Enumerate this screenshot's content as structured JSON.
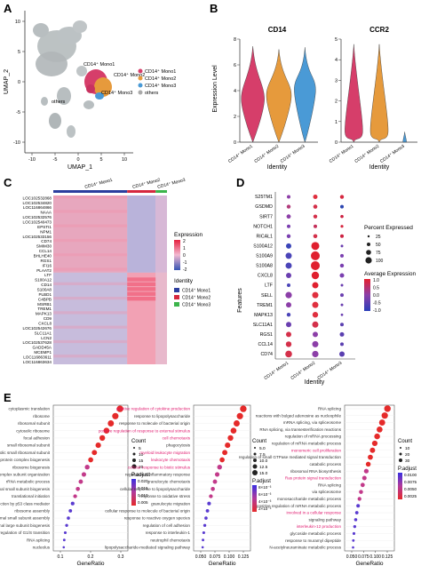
{
  "panels": {
    "A": {
      "label": "A",
      "xlabel": "UMAP_1",
      "ylabel": "UMAP_2",
      "xticks": [
        "-10",
        "-5",
        "0",
        "5",
        "10"
      ],
      "yticks": [
        "10",
        "5",
        "0",
        "-5",
        "-10"
      ],
      "annotations": [
        "CD14⁺ Mono1",
        "CD14⁺ Mono2",
        "CD14⁺ Mono3",
        "others"
      ],
      "legend": [
        {
          "name": "CD14⁺ Mono1",
          "color": "#d63e6a"
        },
        {
          "name": "CD14⁺ Mono2",
          "color": "#e69a3c"
        },
        {
          "name": "CD14⁺ Mono3",
          "color": "#4a9ad6"
        },
        {
          "name": "others",
          "color": "#aaaaaa"
        }
      ]
    },
    "B": {
      "label": "B",
      "genes": [
        {
          "title": "CD14",
          "yticks": [
            "8",
            "6",
            "4",
            "2",
            "0"
          ]
        },
        {
          "title": "CCR2",
          "yticks": [
            "5",
            "4",
            "3",
            "2",
            "1",
            "0"
          ]
        }
      ],
      "ylabel": "Expression Level",
      "xlabel": "Identity",
      "groups": [
        "CD14⁺ Mono1",
        "CD14⁺ Mono2",
        "CD14⁺ Mono3"
      ],
      "colors": [
        "#d63e6a",
        "#e69a3c",
        "#4a9ad6"
      ]
    },
    "C": {
      "label": "C",
      "top_labels": [
        "CD14⁺ Mono1",
        "CD14⁺ Mono2",
        "CD14⁺ Mono3"
      ],
      "genes": [
        "LOC102532868",
        "LOC102534820",
        "LOC116864866",
        "NAAA",
        "LOC102532576",
        "LOC102540473",
        "EPSTI1",
        "NPM1",
        "LOC102533156",
        "CD74",
        "SMIM30",
        "CCL14",
        "BHLHE40",
        "RGS1",
        "IFI16",
        "PLAAT2",
        "LTF",
        "S100A12",
        "CD14",
        "S100A8",
        "PLBD1",
        "C4BPB",
        "MSRB1",
        "TREM1",
        "MAPK13",
        "CD9",
        "CXCL8",
        "LOC102542676",
        "SLC11A1",
        "LCN2",
        "LOC102537628",
        "GADD45A",
        "MCEMP1",
        "LOC116863611",
        "LOC116863634"
      ],
      "legend_expression_title": "Expression",
      "expression_ticks": [
        "2",
        "1",
        "0",
        "-1",
        "-2"
      ],
      "legend_identity_title": "Identity",
      "identity": [
        {
          "name": "CD14⁺ Mono1",
          "color": "#2c3e9e"
        },
        {
          "name": "CD14⁺ Mono2",
          "color": "#d6283e"
        },
        {
          "name": "CD14⁺ Mono3",
          "color": "#3cb44b"
        }
      ]
    },
    "D": {
      "label": "D",
      "features": [
        "S25TM1",
        "GSDMD",
        "SIRT7",
        "NOTCH1",
        "RICAL1",
        "S100A12",
        "S100A9",
        "S100A8",
        "CXCL8",
        "LTF",
        "SELL",
        "TREM1",
        "MAPK13",
        "SLC11A1",
        "RGS1",
        "CCL14",
        "CD74"
      ],
      "ylabel": "Features",
      "xlabel": "Identity",
      "groups": [
        "CD14⁺ Mono1",
        "CD14⁺ Mono2",
        "CD14⁺ Mono3"
      ],
      "pct_title": "Percent Expressed",
      "pct_ticks": [
        "25",
        "50",
        "75",
        "100"
      ],
      "avg_title": "Average Expression",
      "avg_ticks": [
        "1.0",
        "0.5",
        "0.0",
        "-0.5",
        "-1.0"
      ]
    },
    "E": {
      "label": "E",
      "xlabel": "GeneRatio",
      "plots": [
        {
          "terms": [
            "cytoplasmic translation",
            "ribosome",
            "ribosomal subunit",
            "cytosolic ribosome",
            "focal adhesion",
            "small ribosomal subunit",
            "cytosolic small ribosomal subunit",
            "ribonucleoprotein complex biogenesis",
            "ribosome biogenesis",
            "ribonucleoprotein complex subunit organization",
            "rRNA metabolic process",
            "ribosomal small subunit biogenesis",
            "translational initiation",
            "signal transduction by p53 class mediator",
            "ribosome assembly",
            "ribosomal small subunit assembly",
            "ribosomal large subunit biogenesis",
            "negative regulation of G1/S transition",
            "RNA splicing",
            "nucleolus"
          ],
          "xticks": [
            "0.1",
            "0.2",
            "0.3"
          ],
          "count_title": "Count",
          "count_ticks": [
            "5",
            "10",
            "15",
            "20"
          ],
          "padj_title": "P.adjust",
          "padj_ticks": [
            "0.020",
            "0.015",
            "0.010",
            "0.005"
          ]
        },
        {
          "terms": [
            "positive regulation of cytokine production",
            "response to lipopolysaccharide",
            "response to molecule of bacterial origin",
            "positive regulation of response to external stimulus",
            "cell chemotaxis",
            "phagocytosis",
            "myeloid leukocyte migration",
            "leukocyte chemotaxis",
            "cellular response to biotic stimulus",
            "regulation of inflammatory response",
            "granulocyte chemotaxis",
            "cellular response to lipopolysaccharide",
            "response to oxidative stress",
            "granulocyte migration",
            "cellular response to molecule of bacterial origin",
            "response to reactive oxygen species",
            "regulation of cell adhesion",
            "response to interleukin-1",
            "neutrophil chemotaxis",
            "lipopolysaccharide-mediated signaling pathway"
          ],
          "highlight": [
            0,
            3,
            4,
            6,
            7,
            8
          ],
          "xticks": [
            "0.050",
            "0.075",
            "0.100",
            "0.125"
          ],
          "count_title": "Count",
          "count_ticks": [
            "5.0",
            "7.5",
            "10.0",
            "12.5",
            "15.0"
          ],
          "padj_title": "P.adjust",
          "padj_ticks": [
            "8×10⁻³",
            "6×10⁻³",
            "4×10⁻³",
            "2×10⁻³"
          ]
        },
        {
          "terms": [
            "RNA splicing",
            "reactions with bulged adenosine as nucleophile",
            "mRNA splicing, via spliceosome",
            "RNA splicing, via transesterification reactions",
            "regulation of mRNA processing",
            "regulation of mRNA metabolic process",
            "monomeric cell proliferation",
            "regulation of small GTPase mediated signal transduction",
            "catabolic process",
            "ribosomal RNA biosynthesis",
            "Ras protein signal transduction",
            "RNA splicing",
            "via spliceosome",
            "monosaccharide metabolic process",
            "positive regulation of mRNA metabolic process",
            "involved in a cellular response",
            "signaling pathway",
            "interleukin-12 production",
            "glycoside metabolic process",
            "response to muramyl dipeptide",
            "N-acetylneuraminate metabolic process"
          ],
          "highlight": [
            6,
            10,
            15,
            17
          ],
          "xticks": [
            "0.050",
            "0.075",
            "0.100",
            "0.125"
          ],
          "count_title": "Count",
          "count_ticks": [
            "10",
            "20",
            "30"
          ],
          "padj_title": "P.adjust",
          "padj_ticks": [
            "0.0100",
            "0.0075",
            "0.0050",
            "0.0025"
          ]
        }
      ]
    }
  }
}
